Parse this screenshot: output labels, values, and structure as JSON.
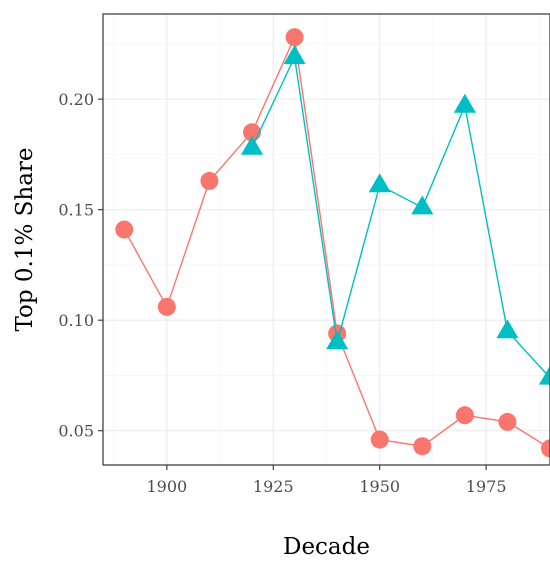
{
  "chart_data": {
    "type": "line",
    "title": "",
    "xlabel": "Decade",
    "ylabel": "Top 0.1% Share",
    "xlim": [
      1885,
      1990
    ],
    "ylim": [
      0.0345,
      0.2385
    ],
    "x_ticks": [
      1900,
      1925,
      1950,
      1975
    ],
    "x_tick_labels": [
      "1900",
      "1925",
      "1950",
      "1975"
    ],
    "y_ticks": [
      0.05,
      0.1,
      0.15,
      0.2
    ],
    "y_tick_labels": [
      "0.05",
      "0.10",
      "0.15",
      "0.20"
    ],
    "grid": true,
    "legend": "none",
    "series": [
      {
        "color": "#F8766D",
        "marker": "circle",
        "x": [
          1890,
          1900,
          1910,
          1920,
          1930,
          1940,
          1950,
          1960,
          1970,
          1980,
          1990
        ],
        "y": [
          0.141,
          0.106,
          0.163,
          0.185,
          0.228,
          0.094,
          0.046,
          0.043,
          0.057,
          0.054,
          0.042
        ]
      },
      {
        "color": "#00BFC4",
        "marker": "triangle",
        "x": [
          1920,
          1930,
          1940,
          1950,
          1960,
          1970,
          1980,
          1990
        ],
        "y": [
          0.178,
          0.219,
          0.09,
          0.161,
          0.151,
          0.197,
          0.095,
          0.074
        ]
      }
    ]
  }
}
